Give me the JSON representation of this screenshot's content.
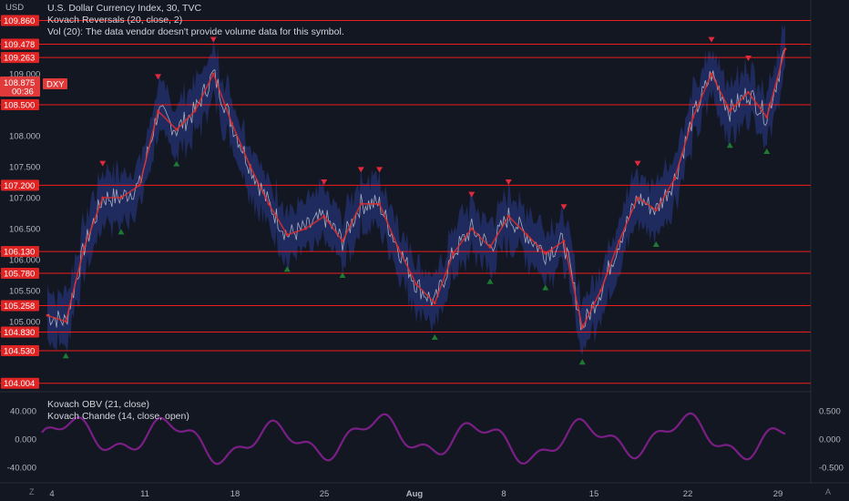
{
  "header": {
    "title": "U.S. Dollar Currency Index, 30, TVC",
    "indicator_1": "Kovach Reversals (20, close, 2)",
    "indicator_2": "Vol (20): The data vendor doesn't provide volume data for this symbol."
  },
  "currency_label": "USD",
  "price_badge": {
    "price": "108.875",
    "countdown": "00:36",
    "symbol": "DXY"
  },
  "lower_pane": {
    "indicator_1": "Kovach OBV (21, close)",
    "indicator_2": "Kovach Chande (14, close, open)"
  },
  "colors": {
    "background": "#131722",
    "horizontal_line": "#f21b1b",
    "candle_line": "#c8cad2",
    "trend_up": "#e22b2b",
    "band": "#2a3d8f",
    "buy_marker": "#1e7a33",
    "sell_marker": "#e0293b",
    "oscillator": "#7b1f86"
  },
  "corner_labels": {
    "left": "Z",
    "right": "A"
  },
  "chart_data": [
    {
      "type": "line",
      "title": "U.S. Dollar Currency Index, 30, TVC",
      "y_axis_ticks": [
        "109.000",
        "108.000",
        "107.500",
        "107.000",
        "106.500",
        "106.000",
        "105.500",
        "105.000"
      ],
      "x_axis_ticks": [
        "4",
        "11",
        "18",
        "25",
        "Aug",
        "8",
        "15",
        "22",
        "29"
      ],
      "ylim": [
        103.9,
        110.0
      ],
      "horizontal_levels": [
        109.86,
        109.478,
        109.263,
        108.5,
        107.2,
        106.13,
        105.78,
        105.258,
        104.83,
        104.53,
        104.004
      ],
      "horizontal_level_labels": [
        "109.860",
        "109.478",
        "109.263",
        "108.500",
        "107.200",
        "106.130",
        "105.780",
        "105.258",
        "104.830",
        "104.530",
        "104.004"
      ],
      "last_price": 108.875,
      "series": [
        {
          "x": [
            "4",
            "5",
            "6",
            "7",
            "8",
            "11",
            "12",
            "13",
            "14",
            "15",
            "18",
            "19",
            "20",
            "21",
            "22",
            "25",
            "26",
            "27",
            "28",
            "29",
            "Aug",
            "2",
            "3",
            "4",
            "5",
            "8",
            "9",
            "10",
            "11",
            "12",
            "15",
            "16",
            "17",
            "18",
            "19",
            "22",
            "23",
            "24",
            "25",
            "26",
            "29"
          ],
          "values": [
            105.1,
            105.0,
            106.2,
            107.0,
            107.0,
            107.2,
            108.4,
            108.1,
            108.4,
            109.0,
            108.2,
            107.5,
            106.9,
            106.4,
            106.5,
            106.7,
            106.3,
            106.9,
            106.9,
            106.2,
            105.6,
            105.3,
            106.1,
            106.5,
            106.2,
            106.7,
            106.4,
            106.1,
            106.3,
            104.9,
            105.5,
            106.3,
            107.0,
            106.8,
            107.3,
            108.3,
            109.0,
            108.4,
            108.7,
            108.3,
            109.4
          ]
        }
      ]
    },
    {
      "type": "line",
      "title": "Kovach OBV (21, close) / Kovach Chande (14, close, open)",
      "left_ticks": [
        "40.000",
        "0.000",
        "-40.000"
      ],
      "right_ticks": [
        "0.500",
        "0.000",
        "-0.500"
      ],
      "ylim": [
        -0.55,
        0.55
      ]
    }
  ]
}
